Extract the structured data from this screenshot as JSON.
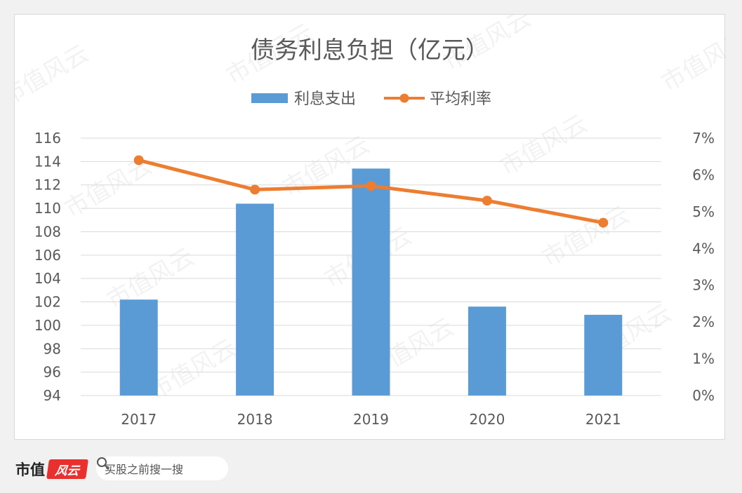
{
  "chart_data": {
    "type": "bar+line",
    "title": "债务利息负担（亿元）",
    "categories": [
      "2017",
      "2018",
      "2019",
      "2020",
      "2021"
    ],
    "series": [
      {
        "name": "利息支出",
        "type": "bar",
        "axis": "left",
        "color": "#5b9bd5",
        "values": [
          102.2,
          110.4,
          113.4,
          101.6,
          100.9
        ]
      },
      {
        "name": "平均利率",
        "type": "line",
        "axis": "right",
        "color": "#ed7d31",
        "values": [
          6.4,
          5.6,
          5.7,
          5.3,
          4.7
        ]
      }
    ],
    "y_left": {
      "min": 94,
      "max": 116,
      "step": 2,
      "ticks": [
        "94",
        "96",
        "98",
        "100",
        "102",
        "104",
        "106",
        "108",
        "110",
        "112",
        "114",
        "116"
      ]
    },
    "y_right": {
      "min": 0,
      "max": 7,
      "step": 1,
      "ticks": [
        "0%",
        "1%",
        "2%",
        "3%",
        "4%",
        "5%",
        "6%",
        "7%"
      ]
    },
    "grid": true,
    "legend_position": "top"
  },
  "footer": {
    "brand_text": "市值",
    "brand_logo_text": "风云",
    "search_text": "买股之前搜一搜"
  },
  "watermark_text": "市值风云",
  "colors": {
    "bar": "#5b9bd5",
    "line": "#ed7d31",
    "grid": "#d9d9d9",
    "text": "#595959"
  }
}
